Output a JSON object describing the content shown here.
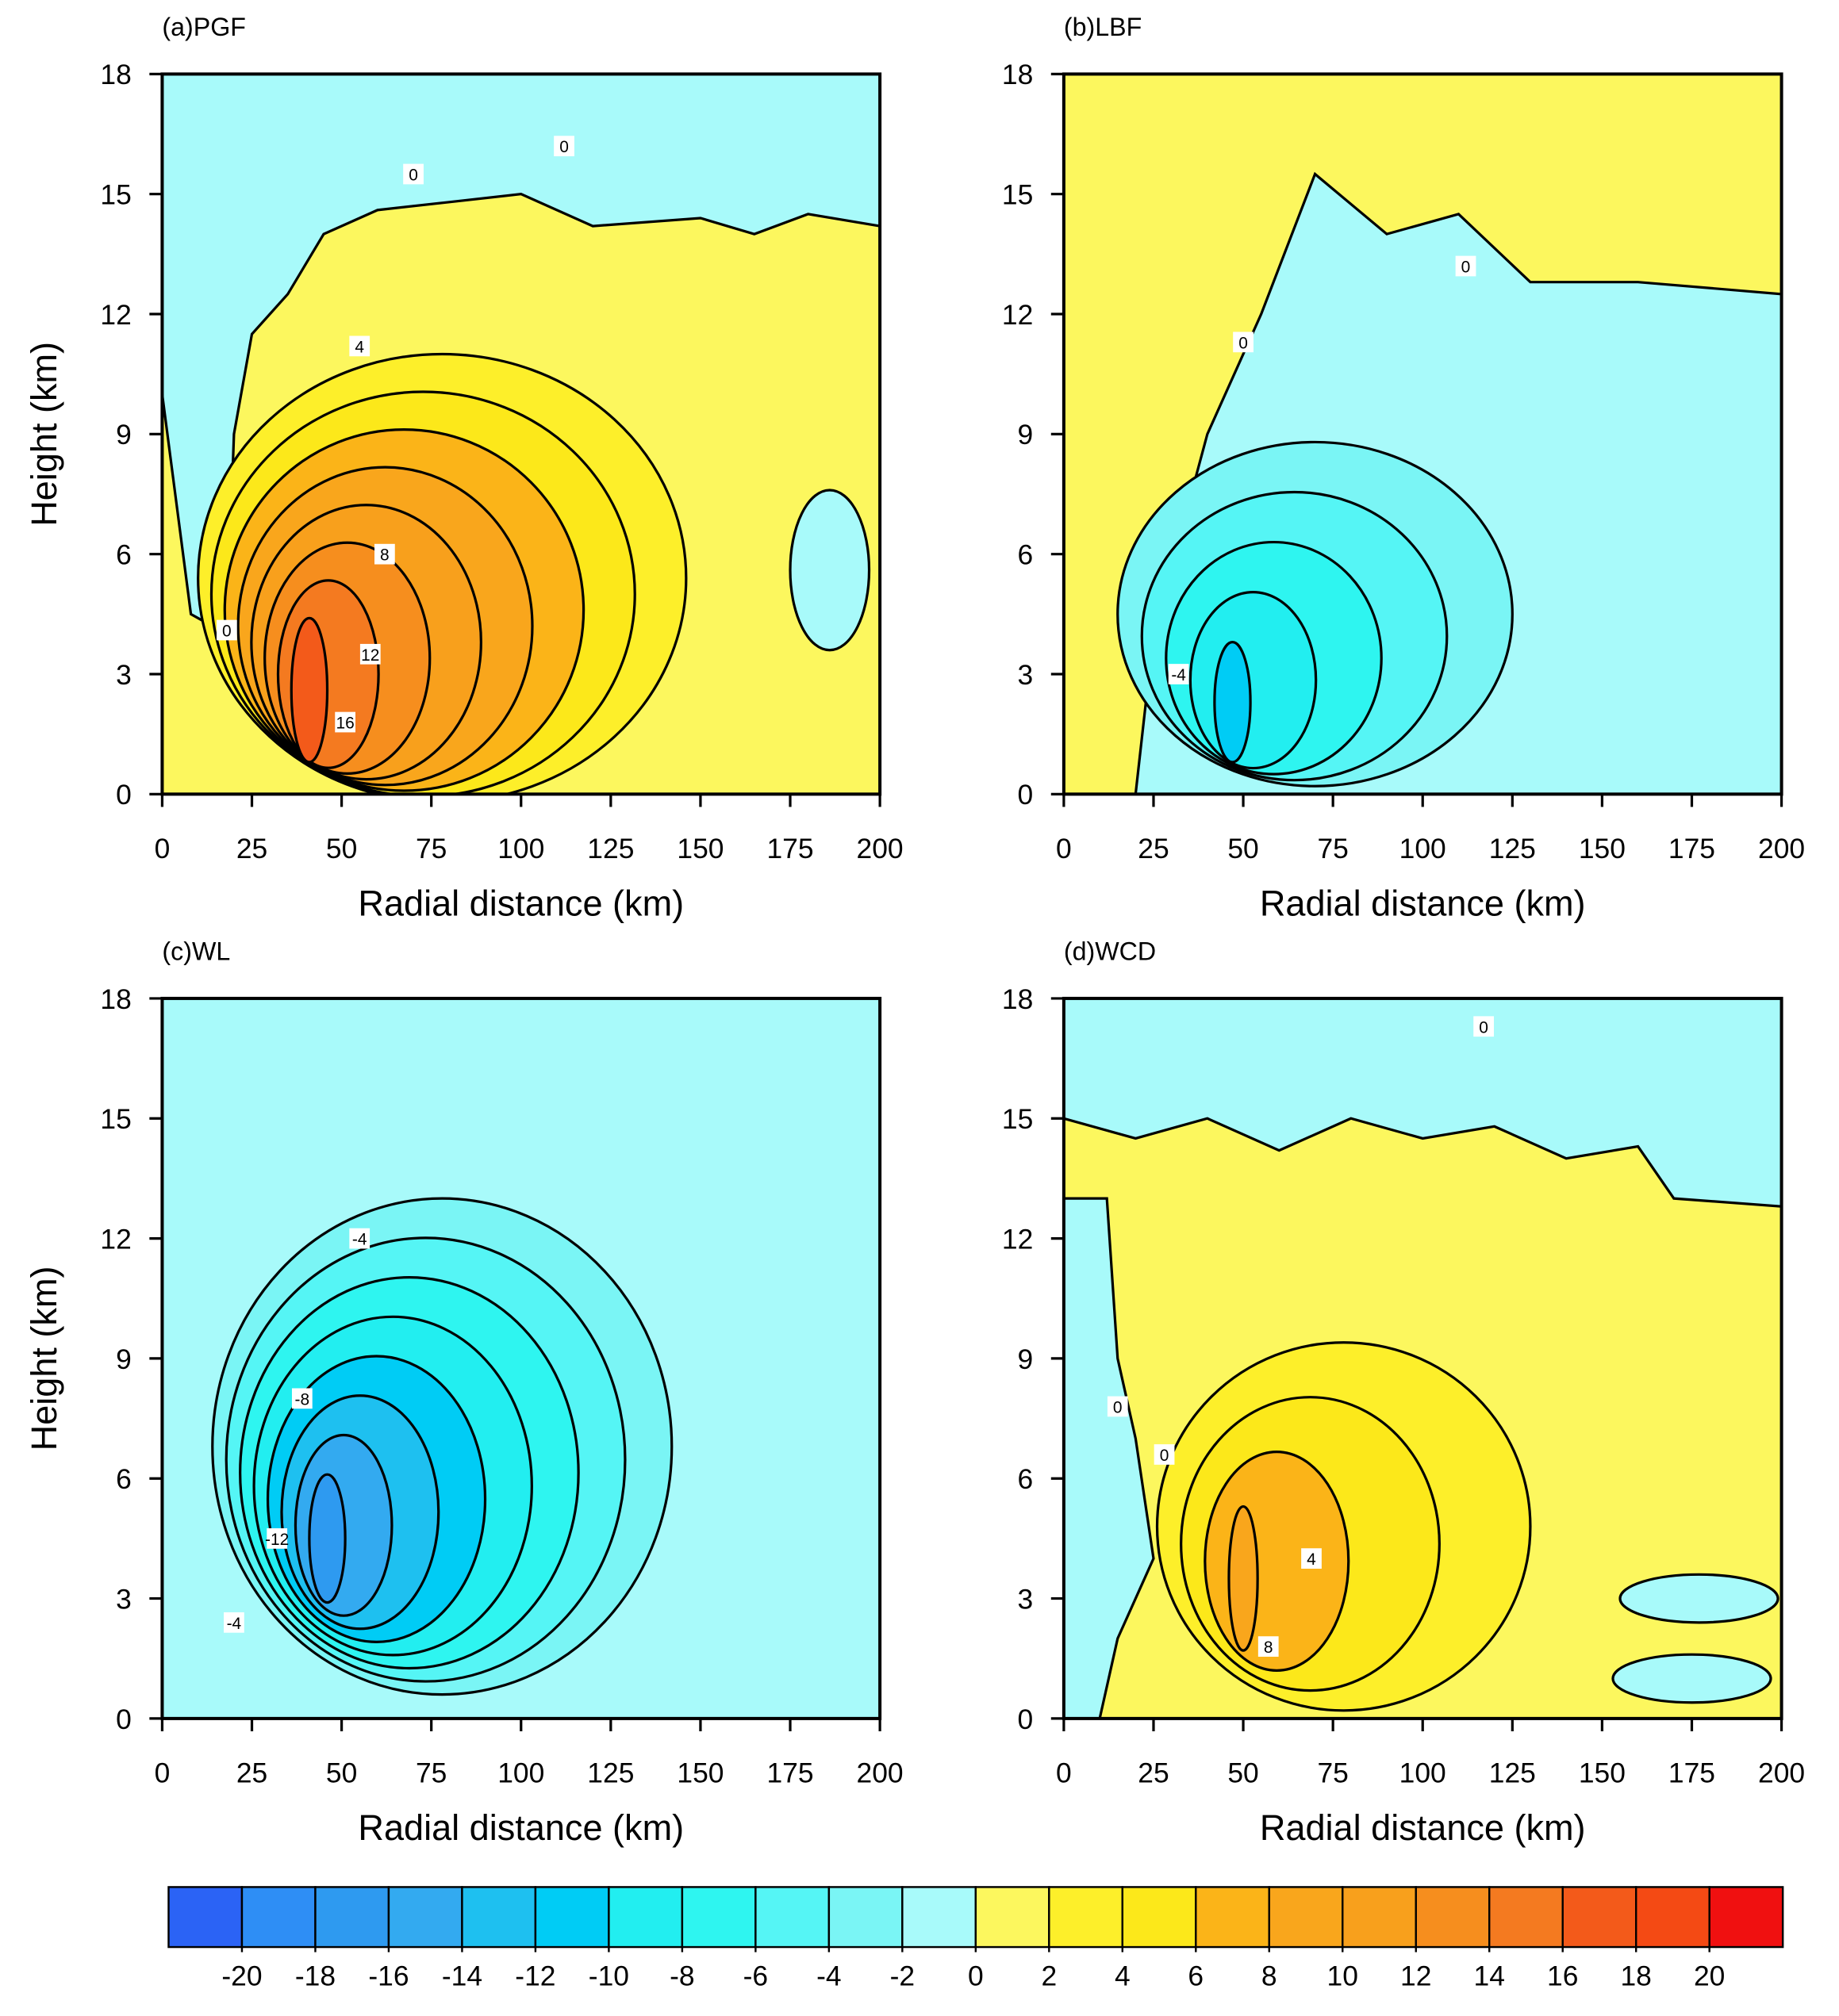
{
  "chart_data": [
    {
      "type": "contour",
      "title": "(a)PGF",
      "xlabel": "Radial distance (km)",
      "ylabel": "Height (km)",
      "xlim": [
        0,
        200
      ],
      "ylim": [
        0,
        18
      ],
      "xticks": [
        0,
        25,
        50,
        75,
        100,
        125,
        150,
        175,
        200
      ],
      "yticks": [
        0,
        3,
        6,
        9,
        12,
        15,
        18
      ],
      "contour_labels": {
        "x": [
          70,
          112,
          55,
          62,
          58,
          51,
          18
        ],
        "y": [
          15.5,
          16.2,
          11.2,
          6,
          3.5,
          1.8,
          4.1
        ],
        "values": [
          0,
          0,
          4,
          8,
          12,
          16,
          0
        ]
      }
    },
    {
      "type": "contour",
      "title": "(b)LBF",
      "xlabel": "Radial distance (km)",
      "ylabel": "",
      "xlim": [
        0,
        200
      ],
      "ylim": [
        0,
        18
      ],
      "xticks": [
        0,
        25,
        50,
        75,
        100,
        125,
        150,
        175,
        200
      ],
      "yticks": [
        0,
        3,
        6,
        9,
        12,
        15,
        18
      ],
      "contour_labels": {
        "x": [
          112,
          50,
          32
        ],
        "y": [
          13.2,
          11.3,
          3
        ],
        "values": [
          0,
          0,
          -4
        ]
      }
    },
    {
      "type": "contour",
      "title": "(c)WL",
      "xlabel": "Radial distance (km)",
      "ylabel": "Height (km)",
      "xlim": [
        0,
        200
      ],
      "ylim": [
        0,
        18
      ],
      "xticks": [
        0,
        25,
        50,
        75,
        100,
        125,
        150,
        175,
        200
      ],
      "yticks": [
        0,
        3,
        6,
        9,
        12,
        15,
        18
      ],
      "contour_labels": {
        "x": [
          55,
          39,
          32,
          20
        ],
        "y": [
          12,
          8,
          4.5,
          2.4
        ],
        "values": [
          -4,
          -8,
          -12,
          -4
        ]
      }
    },
    {
      "type": "contour",
      "title": "(d)WCD",
      "xlabel": "Radial distance (km)",
      "ylabel": "",
      "xlim": [
        0,
        200
      ],
      "ylim": [
        0,
        18
      ],
      "xticks": [
        0,
        25,
        50,
        75,
        100,
        125,
        150,
        175,
        200
      ],
      "yticks": [
        0,
        3,
        6,
        9,
        12,
        15,
        18
      ],
      "contour_labels": {
        "x": [
          117,
          15,
          28,
          69,
          57
        ],
        "y": [
          17.3,
          7.8,
          6.6,
          4,
          1.8
        ],
        "values": [
          0,
          0,
          0,
          4,
          8
        ]
      }
    },
    {
      "type": "colorbar",
      "xlim": [
        -22,
        22
      ],
      "ticks": [
        -20,
        -18,
        -16,
        -14,
        -12,
        -10,
        -8,
        -6,
        -4,
        -2,
        0,
        2,
        4,
        6,
        8,
        10,
        12,
        14,
        16,
        18,
        20
      ],
      "colors": [
        "#2b63f5",
        "#2e8ef5",
        "#2e9af0",
        "#33aaf0",
        "#1ec0f0",
        "#00ccf5",
        "#22eef0",
        "#2ef5f0",
        "#55f5f5",
        "#7af5f5",
        "#a8fafa",
        "#fcf75e",
        "#fdef2a",
        "#fce81a",
        "#fbb418",
        "#f9a61c",
        "#f8a01c",
        "#f68e1e",
        "#f47a20",
        "#f35a1a",
        "#f44a14",
        "#f01010"
      ]
    }
  ]
}
